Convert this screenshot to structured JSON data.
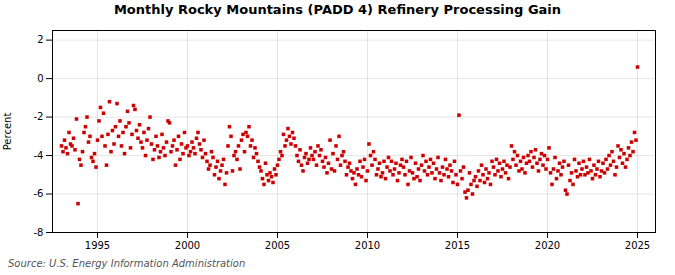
{
  "chart_data": {
    "type": "scatter",
    "title": "Monthly Rocky Mountains (PADD 4) Refinery Processing Gain",
    "ylabel": "Percent",
    "caption": "Source: U.S. Energy Information Administration",
    "color": "#CC0000",
    "marker": "square",
    "grid": true,
    "xlim": [
      1992.5,
      2026.0
    ],
    "ylim": [
      -8,
      2.5
    ],
    "xticks": [
      1995,
      2000,
      2005,
      2010,
      2015,
      2020,
      2025
    ],
    "yticks": [
      -8,
      -6,
      -4,
      -2,
      0,
      2
    ],
    "x": [
      1993.0,
      1993.083,
      1993.167,
      1993.25,
      1993.333,
      1993.417,
      1993.5,
      1993.583,
      1993.667,
      1993.75,
      1993.833,
      1993.917,
      1994.0,
      1994.083,
      1994.167,
      1994.25,
      1994.333,
      1994.417,
      1994.5,
      1994.583,
      1994.667,
      1994.75,
      1994.833,
      1994.917,
      1995.0,
      1995.083,
      1995.167,
      1995.25,
      1995.333,
      1995.417,
      1995.5,
      1995.583,
      1995.667,
      1995.75,
      1995.833,
      1995.917,
      1996.0,
      1996.083,
      1996.167,
      1996.25,
      1996.333,
      1996.417,
      1996.5,
      1996.583,
      1996.667,
      1996.75,
      1996.833,
      1996.917,
      1997.0,
      1997.083,
      1997.167,
      1997.25,
      1997.333,
      1997.417,
      1997.5,
      1997.583,
      1997.667,
      1997.75,
      1997.833,
      1997.917,
      1998.0,
      1998.083,
      1998.167,
      1998.25,
      1998.333,
      1998.417,
      1998.5,
      1998.583,
      1998.667,
      1998.75,
      1998.833,
      1998.917,
      1999.0,
      1999.083,
      1999.167,
      1999.25,
      1999.333,
      1999.417,
      1999.5,
      1999.583,
      1999.667,
      1999.75,
      1999.833,
      1999.917,
      2000.0,
      2000.083,
      2000.167,
      2000.25,
      2000.333,
      2000.417,
      2000.5,
      2000.583,
      2000.667,
      2000.75,
      2000.833,
      2000.917,
      2001.0,
      2001.083,
      2001.167,
      2001.25,
      2001.333,
      2001.417,
      2001.5,
      2001.583,
      2001.667,
      2001.75,
      2001.833,
      2001.917,
      2002.0,
      2002.083,
      2002.167,
      2002.25,
      2002.333,
      2002.417,
      2002.5,
      2002.583,
      2002.667,
      2002.75,
      2002.833,
      2002.917,
      2003.0,
      2003.083,
      2003.167,
      2003.25,
      2003.333,
      2003.417,
      2003.5,
      2003.583,
      2003.667,
      2003.75,
      2003.833,
      2003.917,
      2004.0,
      2004.083,
      2004.167,
      2004.25,
      2004.333,
      2004.417,
      2004.5,
      2004.583,
      2004.667,
      2004.75,
      2004.833,
      2004.917,
      2005.0,
      2005.083,
      2005.167,
      2005.25,
      2005.333,
      2005.417,
      2005.5,
      2005.583,
      2005.667,
      2005.75,
      2005.833,
      2005.917,
      2006.0,
      2006.083,
      2006.167,
      2006.25,
      2006.333,
      2006.417,
      2006.5,
      2006.583,
      2006.667,
      2006.75,
      2006.833,
      2006.917,
      2007.0,
      2007.083,
      2007.167,
      2007.25,
      2007.333,
      2007.417,
      2007.5,
      2007.583,
      2007.667,
      2007.75,
      2007.833,
      2007.917,
      2008.0,
      2008.083,
      2008.167,
      2008.25,
      2008.333,
      2008.417,
      2008.5,
      2008.583,
      2008.667,
      2008.75,
      2008.833,
      2008.917,
      2009.0,
      2009.083,
      2009.167,
      2009.25,
      2009.333,
      2009.417,
      2009.5,
      2009.583,
      2009.667,
      2009.75,
      2009.833,
      2009.917,
      2010.0,
      2010.083,
      2010.167,
      2010.25,
      2010.333,
      2010.417,
      2010.5,
      2010.583,
      2010.667,
      2010.75,
      2010.833,
      2010.917,
      2011.0,
      2011.083,
      2011.167,
      2011.25,
      2011.333,
      2011.417,
      2011.5,
      2011.583,
      2011.667,
      2011.75,
      2011.833,
      2011.917,
      2012.0,
      2012.083,
      2012.167,
      2012.25,
      2012.333,
      2012.417,
      2012.5,
      2012.583,
      2012.667,
      2012.75,
      2012.833,
      2012.917,
      2013.0,
      2013.083,
      2013.167,
      2013.25,
      2013.333,
      2013.417,
      2013.5,
      2013.583,
      2013.667,
      2013.75,
      2013.833,
      2013.917,
      2014.0,
      2014.083,
      2014.167,
      2014.25,
      2014.333,
      2014.417,
      2014.5,
      2014.583,
      2014.667,
      2014.75,
      2014.833,
      2014.917,
      2015.0,
      2015.083,
      2015.167,
      2015.25,
      2015.333,
      2015.417,
      2015.5,
      2015.583,
      2015.667,
      2015.75,
      2015.833,
      2015.917,
      2016.0,
      2016.083,
      2016.167,
      2016.25,
      2016.333,
      2016.417,
      2016.5,
      2016.583,
      2016.667,
      2016.75,
      2016.833,
      2016.917,
      2017.0,
      2017.083,
      2017.167,
      2017.25,
      2017.333,
      2017.417,
      2017.5,
      2017.583,
      2017.667,
      2017.75,
      2017.833,
      2017.917,
      2018.0,
      2018.083,
      2018.167,
      2018.25,
      2018.333,
      2018.417,
      2018.5,
      2018.583,
      2018.667,
      2018.75,
      2018.833,
      2018.917,
      2019.0,
      2019.083,
      2019.167,
      2019.25,
      2019.333,
      2019.417,
      2019.5,
      2019.583,
      2019.667,
      2019.75,
      2019.833,
      2019.917,
      2020.0,
      2020.083,
      2020.167,
      2020.25,
      2020.333,
      2020.417,
      2020.5,
      2020.583,
      2020.667,
      2020.75,
      2020.833,
      2020.917,
      2021.0,
      2021.083,
      2021.167,
      2021.25,
      2021.333,
      2021.417,
      2021.5,
      2021.583,
      2021.667,
      2021.75,
      2021.833,
      2021.917,
      2022.0,
      2022.083,
      2022.167,
      2022.25,
      2022.333,
      2022.417,
      2022.5,
      2022.583,
      2022.667,
      2022.75,
      2022.833,
      2022.917,
      2023.0,
      2023.083,
      2023.167,
      2023.25,
      2023.333,
      2023.417,
      2023.5,
      2023.583,
      2023.667,
      2023.75,
      2023.833,
      2023.917,
      2024.0,
      2024.083,
      2024.167,
      2024.25,
      2024.333,
      2024.417,
      2024.5,
      2024.583,
      2024.667,
      2024.75,
      2024.833,
      2024.917,
      2025.0
    ],
    "values": [
      -3.5,
      -3.8,
      -3.2,
      -3.6,
      -3.9,
      -2.8,
      -3.4,
      -3.5,
      -3.1,
      -3.7,
      -2.1,
      -6.5,
      -4.2,
      -4.5,
      -3.8,
      -2.8,
      -2.5,
      -2.0,
      -3.3,
      -3.0,
      -4.1,
      -4.3,
      -3.9,
      -4.6,
      -3.2,
      -2.2,
      -1.5,
      -3.0,
      -1.8,
      -3.5,
      -4.5,
      -2.9,
      -1.2,
      -3.8,
      -2.7,
      -3.4,
      -2.5,
      -1.3,
      -3.0,
      -2.2,
      -3.5,
      -2.8,
      -3.9,
      -2.5,
      -1.7,
      -2.3,
      -3.6,
      -2.9,
      -1.4,
      -1.6,
      -2.7,
      -3.1,
      -2.4,
      -3.3,
      -3.6,
      -2.8,
      -4.0,
      -3.2,
      -2.6,
      -2.0,
      -3.4,
      -4.2,
      -3.7,
      -3.0,
      -3.5,
      -4.1,
      -3.8,
      -2.9,
      -3.6,
      -4.0,
      -3.3,
      -2.2,
      -2.3,
      -3.8,
      -3.5,
      -3.2,
      -4.5,
      -3.7,
      -3.0,
      -4.2,
      -3.4,
      -3.9,
      -2.8,
      -3.6,
      -3.5,
      -4.0,
      -3.8,
      -3.3,
      -3.6,
      -3.9,
      -3.1,
      -2.8,
      -3.4,
      -3.7,
      -4.1,
      -3.2,
      -3.9,
      -4.3,
      -4.7,
      -4.5,
      -3.8,
      -4.1,
      -5.0,
      -4.6,
      -4.3,
      -5.2,
      -4.8,
      -4.5,
      -4.2,
      -5.5,
      -4.9,
      -3.5,
      -2.5,
      -3.0,
      -4.8,
      -4.0,
      -3.8,
      -4.2,
      -3.5,
      -4.7,
      -3.2,
      -2.9,
      -3.8,
      -2.8,
      -3.0,
      -2.5,
      -3.5,
      -3.2,
      -4.1,
      -3.6,
      -3.9,
      -4.3,
      -4.6,
      -4.8,
      -5.2,
      -5.5,
      -4.4,
      -5.0,
      -5.3,
      -4.9,
      -5.1,
      -5.4,
      -4.7,
      -5.0,
      -4.5,
      -4.2,
      -3.8,
      -4.0,
      -2.9,
      -3.5,
      -3.2,
      -2.6,
      -3.0,
      -3.4,
      -2.8,
      -3.1,
      -3.5,
      -4.0,
      -4.3,
      -3.7,
      -4.5,
      -4.8,
      -4.1,
      -3.9,
      -4.4,
      -4.2,
      -3.6,
      -4.0,
      -4.2,
      -3.8,
      -4.5,
      -3.5,
      -4.0,
      -3.7,
      -4.3,
      -4.6,
      -4.1,
      -4.9,
      -4.4,
      -3.2,
      -4.7,
      -3.9,
      -4.8,
      -3.5,
      -4.2,
      -3.0,
      -4.5,
      -4.0,
      -3.8,
      -4.3,
      -5.0,
      -4.6,
      -4.4,
      -4.8,
      -5.2,
      -4.9,
      -5.5,
      -4.7,
      -5.0,
      -4.3,
      -5.1,
      -4.6,
      -4.2,
      -5.3,
      -4.8,
      -3.4,
      -4.0,
      -4.5,
      -3.8,
      -4.2,
      -5.0,
      -4.7,
      -4.4,
      -5.1,
      -4.9,
      -4.3,
      -5.2,
      -4.6,
      -4.1,
      -4.8,
      -4.3,
      -5.0,
      -4.7,
      -4.4,
      -5.3,
      -4.9,
      -4.5,
      -4.2,
      -4.6,
      -5.0,
      -4.3,
      -5.5,
      -4.8,
      -4.1,
      -4.9,
      -5.2,
      -4.4,
      -5.1,
      -4.7,
      -5.3,
      -4.5,
      -4.0,
      -4.8,
      -4.3,
      -5.0,
      -4.6,
      -4.2,
      -4.9,
      -4.4,
      -5.2,
      -4.7,
      -4.1,
      -4.9,
      -5.3,
      -4.6,
      -5.0,
      -4.2,
      -4.7,
      -5.1,
      -4.5,
      -4.8,
      -5.4,
      -4.3,
      -5.0,
      -5.5,
      -1.9,
      -4.8,
      -5.2,
      -4.6,
      -5.9,
      -6.2,
      -5.8,
      -4.9,
      -5.5,
      -6.0,
      -5.3,
      -5.1,
      -5.6,
      -4.8,
      -5.3,
      -4.5,
      -5.0,
      -5.4,
      -4.7,
      -5.2,
      -4.9,
      -5.5,
      -4.3,
      -4.6,
      -5.0,
      -4.2,
      -4.8,
      -4.4,
      -5.1,
      -4.7,
      -4.3,
      -4.9,
      -4.5,
      -5.2,
      -4.6,
      -3.5,
      -4.2,
      -3.8,
      -4.5,
      -4.0,
      -4.8,
      -4.3,
      -4.7,
      -4.1,
      -4.9,
      -4.4,
      -4.0,
      -4.3,
      -3.8,
      -4.6,
      -4.1,
      -3.7,
      -4.4,
      -4.8,
      -4.2,
      -3.9,
      -4.5,
      -4.0,
      -4.7,
      -4.2,
      -3.6,
      -4.9,
      -5.5,
      -4.7,
      -4.1,
      -5.2,
      -4.8,
      -4.4,
      -5.0,
      -4.6,
      -4.3,
      -5.8,
      -6.0,
      -4.5,
      -5.3,
      -4.9,
      -5.5,
      -4.2,
      -4.8,
      -5.1,
      -4.4,
      -5.0,
      -4.7,
      -4.3,
      -5.0,
      -4.6,
      -4.9,
      -4.2,
      -4.8,
      -5.2,
      -4.5,
      -5.0,
      -4.7,
      -4.3,
      -5.1,
      -4.8,
      -4.4,
      -4.9,
      -4.2,
      -4.7,
      -4.0,
      -4.5,
      -3.8,
      -4.3,
      -5.0,
      -4.6,
      -3.5,
      -4.1,
      -3.7,
      -4.4,
      -3.9,
      -4.6,
      -4.2,
      -3.6,
      -4.0,
      -3.3,
      -3.8,
      -2.8,
      -3.2,
      0.6
    ]
  }
}
